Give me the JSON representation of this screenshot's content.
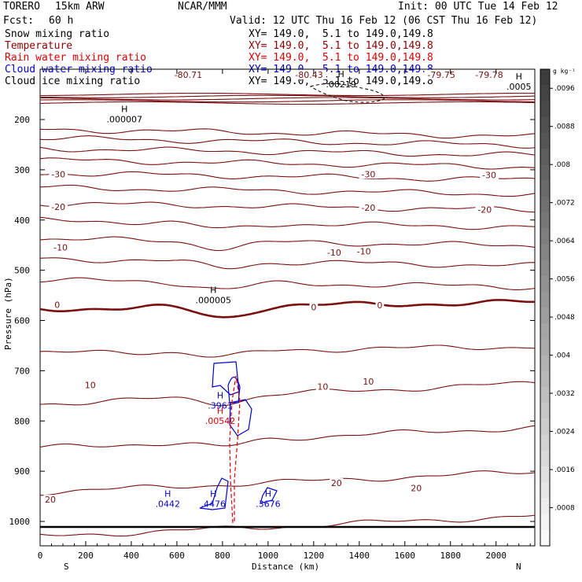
{
  "header": {
    "model": "TORERO",
    "resolution": "15km ARW",
    "center": "NCAR/MMM",
    "init": "Init: 00 UTC Tue 14 Feb 12",
    "fcst_label": "Fcst:",
    "fcst_value": "60 h",
    "valid": "Valid: 12 UTC Thu 16 Feb 12 (06 CST Thu 16 Feb 12)"
  },
  "fields": [
    {
      "name": "Snow mixing ratio",
      "xy": "XY= 149.0,  5.1 to 149.0,149.8",
      "color": "#000000"
    },
    {
      "name": "Temperature",
      "xy": "XY= 149.0,  5.1 to 149.0,149.8",
      "color": "#8b0000"
    },
    {
      "name": "Rain water mixing ratio",
      "xy": "XY= 149.0,  5.1 to 149.0,149.8",
      "color": "#e00000"
    },
    {
      "name": "Cloud water mixing ratio",
      "xy": "XY= 149.0,  5.1 to 149.0,149.8",
      "color": "#0000cc"
    },
    {
      "name": "Cloud ice mixing ratio",
      "xy": "XY= 149.0,  5.1 to 149.0,149.8",
      "color": "#000000"
    }
  ],
  "colorbar": {
    "unit": "g kg⁻¹",
    "ticks": [
      ".0008",
      ".0016",
      ".0024",
      ".0032",
      ".004",
      ".0048",
      ".0056",
      ".0064",
      ".0072",
      ".008",
      ".0088",
      ".0096"
    ],
    "range": [
      0,
      0.01
    ]
  },
  "chart_data": {
    "type": "contour cross-section",
    "xlabel": "Distance (km)",
    "ylabel": "Pressure (hPa)",
    "xlim": [
      0,
      2170
    ],
    "ylim": [
      1050,
      100
    ],
    "x_ticks": [
      0,
      200,
      400,
      600,
      800,
      1000,
      1200,
      1400,
      1600,
      1800,
      2000
    ],
    "y_ticks": [
      200,
      300,
      400,
      500,
      600,
      700,
      800,
      900,
      1000
    ],
    "x_end_labels": {
      "left": "S",
      "right": "N"
    },
    "temperature_levels_degC": [
      -80,
      -75,
      -70,
      -65,
      -60,
      -55,
      -50,
      -45,
      -40,
      -35,
      -30,
      -25,
      -20,
      -15,
      -10,
      -5,
      0,
      5,
      10,
      15,
      20,
      25
    ],
    "temperature_labels": [
      {
        "text": "-80.71",
        "x": 650,
        "p": 112
      },
      {
        "text": "-80.43",
        "x": 1180,
        "p": 112
      },
      {
        "text": "-79.75",
        "x": 1760,
        "p": 112
      },
      {
        "text": "-79.78",
        "x": 1970,
        "p": 112
      },
      {
        "text": "-30",
        "x": 80,
        "p": 310
      },
      {
        "text": "-30",
        "x": 1440,
        "p": 310
      },
      {
        "text": "-30",
        "x": 1970,
        "p": 312
      },
      {
        "text": "-20",
        "x": 80,
        "p": 375
      },
      {
        "text": "-20",
        "x": 1440,
        "p": 377
      },
      {
        "text": "-20",
        "x": 1950,
        "p": 381
      },
      {
        "text": "-10",
        "x": 90,
        "p": 456
      },
      {
        "text": "-10",
        "x": 1290,
        "p": 466
      },
      {
        "text": "-10",
        "x": 1420,
        "p": 464
      },
      {
        "text": "0",
        "x": 75,
        "p": 570
      },
      {
        "text": "0",
        "x": 1200,
        "p": 575
      },
      {
        "text": "0",
        "x": 1490,
        "p": 571
      },
      {
        "text": "10",
        "x": 220,
        "p": 730
      },
      {
        "text": "10",
        "x": 1240,
        "p": 733
      },
      {
        "text": "10",
        "x": 1440,
        "p": 723
      },
      {
        "text": "20",
        "x": 45,
        "p": 958
      },
      {
        "text": "20",
        "x": 1300,
        "p": 925
      },
      {
        "text": "20",
        "x": 1650,
        "p": 935
      }
    ],
    "extrema": [
      {
        "kind": "H",
        "value": ".000007",
        "x": 370,
        "p": 190,
        "field": "Snow mixing ratio"
      },
      {
        "kind": "H",
        "value": ".000005",
        "x": 760,
        "p": 550,
        "field": "Snow mixing ratio"
      },
      {
        "kind": "H",
        "value": ".00219",
        "x": 1320,
        "p": 120,
        "field": "Cloud ice mixing ratio"
      },
      {
        "kind": "H",
        "value": ".0005",
        "x": 2100,
        "p": 125,
        "field": "Cloud ice mixing ratio"
      },
      {
        "kind": "H",
        "value": ".3961",
        "x": 790,
        "p": 760,
        "field": "Cloud water mixing ratio"
      },
      {
        "kind": "H",
        "value": ".00542",
        "x": 790,
        "p": 790,
        "field": "Rain water mixing ratio"
      },
      {
        "kind": "H",
        "value": ".0442",
        "x": 560,
        "p": 955,
        "field": "Cloud water mixing ratio"
      },
      {
        "kind": "H",
        "value": ".4476",
        "x": 760,
        "p": 955,
        "field": "Cloud water mixing ratio"
      },
      {
        "kind": "H",
        "value": ".3676",
        "x": 1000,
        "p": 955,
        "field": "Cloud water mixing ratio"
      }
    ]
  }
}
